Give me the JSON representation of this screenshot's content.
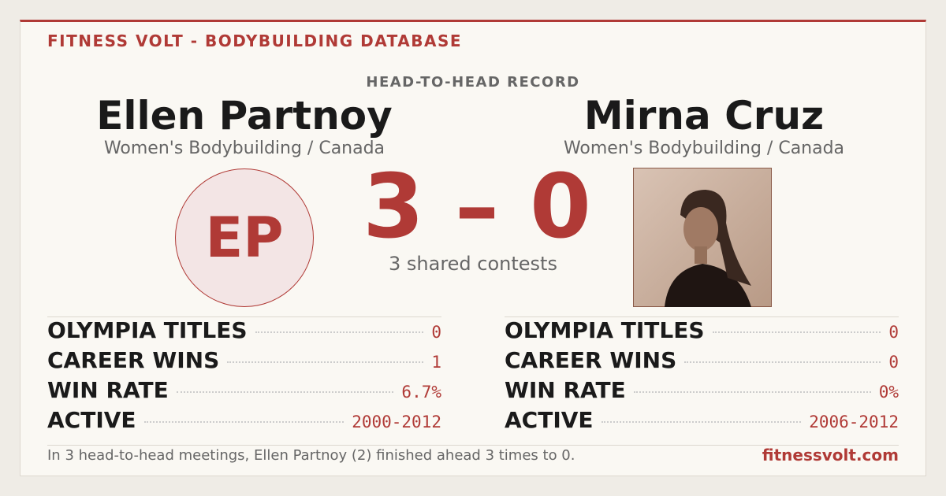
{
  "header": {
    "brand": "FITNESS VOLT - BODYBUILDING DATABASE",
    "section": "HEAD-TO-HEAD RECORD"
  },
  "left": {
    "name": "Ellen Partnoy",
    "subtitle": "Women's Bodybuilding / Canada",
    "initials": "EP",
    "stats": [
      [
        "OLYMPIA TITLES",
        "0"
      ],
      [
        "CAREER WINS",
        "1"
      ],
      [
        "WIN RATE",
        "6.7%"
      ],
      [
        "ACTIVE",
        "2000-2012"
      ]
    ]
  },
  "right": {
    "name": "Mirna Cruz",
    "subtitle": "Women's Bodybuilding / Canada",
    "stats": [
      [
        "OLYMPIA TITLES",
        "0"
      ],
      [
        "CAREER WINS",
        "0"
      ],
      [
        "WIN RATE",
        "0%"
      ],
      [
        "ACTIVE",
        "2006-2012"
      ]
    ]
  },
  "score": "3 – 0",
  "shared": "3 shared contests",
  "footer": {
    "text": "In 3 head-to-head meetings, Ellen Partnoy (2) finished ahead 3 times to 0.",
    "site": "fitnessvolt.com"
  }
}
